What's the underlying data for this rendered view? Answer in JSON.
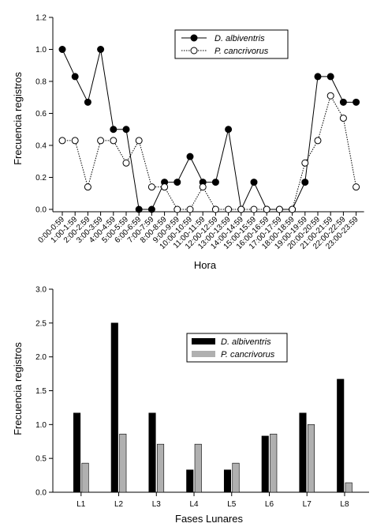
{
  "chart_data": [
    {
      "type": "line",
      "xlabel": "Hora",
      "ylabel": "Frecuencia registros",
      "ylim": [
        0,
        1.2
      ],
      "yticks": [
        "0.0",
        "0.2",
        "0.4",
        "0.6",
        "0.8",
        "1.0",
        "1.2"
      ],
      "categories": [
        "0:00-0:59",
        "1:00-1:59",
        "2:00-2:59",
        "3:00-3:59",
        "4:00-4:59",
        "5:00-5:59",
        "6:00-6:59",
        "7:00-7:59",
        "8:00-8:59",
        "9:00-9:59",
        "10:00-10:59",
        "11:00-11:59",
        "12:00-12:59",
        "13:00-13:59",
        "14:00-14:59",
        "15:00-15:59",
        "16:00-16:59",
        "17:00-17:59",
        "18:00-18:59",
        "19:00-19:59",
        "20:00-20:59",
        "21:00-21:59",
        "22:00-22:59",
        "23:00-23:59"
      ],
      "series": [
        {
          "name": "D. albiventris",
          "style": "solid",
          "marker": "filled-circle",
          "color": "#000000",
          "values": [
            1.0,
            0.83,
            0.67,
            1.0,
            0.5,
            0.5,
            0.0,
            0.0,
            0.17,
            0.17,
            0.33,
            0.17,
            0.17,
            0.5,
            0.0,
            0.17,
            0.0,
            0.0,
            0.0,
            0.17,
            0.83,
            0.83,
            0.67,
            0.67
          ]
        },
        {
          "name": "P. cancrivorus",
          "style": "dotted",
          "marker": "open-circle",
          "color": "#000000",
          "values": [
            0.43,
            0.43,
            0.14,
            0.43,
            0.43,
            0.29,
            0.43,
            0.14,
            0.14,
            0.0,
            0.0,
            0.14,
            0.0,
            0.0,
            0.0,
            0.0,
            0.0,
            0.0,
            0.0,
            0.29,
            0.43,
            0.71,
            0.57,
            0.14
          ]
        }
      ],
      "legend": "top-center",
      "grid": false
    },
    {
      "type": "bar",
      "xlabel": "Fases Lunares",
      "ylabel": "Frecuencia registros",
      "ylim": [
        0,
        3.0
      ],
      "yticks": [
        "0.0",
        "0.5",
        "1.0",
        "1.5",
        "2.0",
        "2.5",
        "3.0"
      ],
      "categories": [
        "L1",
        "L2",
        "L3",
        "L4",
        "L5",
        "L6",
        "L7",
        "L8"
      ],
      "series": [
        {
          "name": "D. albiventris",
          "color": "#000000",
          "values": [
            1.17,
            2.5,
            1.17,
            0.33,
            0.33,
            0.83,
            1.17,
            1.67
          ]
        },
        {
          "name": "P. cancrivorus",
          "color": "#b0b0b0",
          "values": [
            0.43,
            0.86,
            0.71,
            0.71,
            0.43,
            0.86,
            1.0,
            0.14
          ]
        }
      ],
      "legend": "top-center",
      "grid": false
    }
  ]
}
